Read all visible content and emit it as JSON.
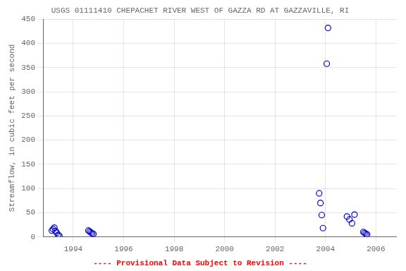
{
  "chart_data": {
    "type": "scatter",
    "title": "USGS 01111410 CHEPACHET RIVER WEST OF GAZZA RD AT GAZZAVILLE, RI",
    "ylabel": "Streamflow, in cubic feet per second",
    "annotations": [
      {
        "text": "---- Provisional Data Subject to Revision ----",
        "color": "red"
      }
    ],
    "x": [
      1993.15,
      1993.2,
      1993.25,
      1993.3,
      1993.35,
      1993.4,
      1993.45,
      1994.6,
      1994.65,
      1994.7,
      1994.75,
      1994.8,
      2003.75,
      2003.8,
      2003.85,
      2003.9,
      2004.05,
      2004.1,
      2004.85,
      2004.95,
      2005.05,
      2005.15,
      2005.5,
      2005.55,
      2005.6,
      2005.65
    ],
    "values": [
      13,
      16,
      19,
      12,
      8,
      4,
      2,
      13,
      11,
      9,
      7,
      6,
      90,
      70,
      45,
      18,
      358,
      432,
      42,
      36,
      28,
      46,
      10,
      8,
      6,
      5
    ],
    "color": "#0000CC",
    "marker": "circle",
    "xlim": [
      1992.8,
      2006.8
    ],
    "xticks": [
      1994,
      1996,
      1998,
      2000,
      2002,
      2004,
      2006
    ],
    "ylim": [
      0,
      450
    ],
    "yticks": [
      0,
      50,
      100,
      150,
      200,
      250,
      300,
      350,
      400,
      450
    ],
    "grid": true
  }
}
